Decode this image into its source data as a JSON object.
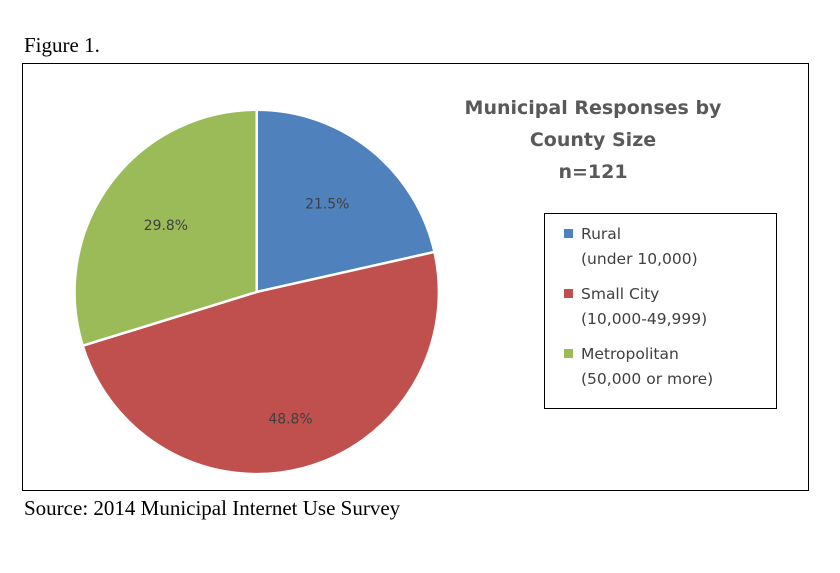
{
  "figure_label": "Figure 1.",
  "source_note": "Source: 2014 Municipal Internet Use Survey",
  "chart_data": {
    "type": "pie",
    "title": "Municipal Responses by County Size",
    "title_lines": [
      "Municipal Responses by",
      "County Size",
      "n=121"
    ],
    "subtitle": "n=121",
    "categories": [
      "Rural",
      "Small City",
      "Metropolitan"
    ],
    "category_details": [
      "(under 10,000)",
      "(10,000-49,999)",
      "(50,000 or more)"
    ],
    "values": [
      21.5,
      48.8,
      29.8
    ],
    "data_labels": [
      "21.5%",
      "48.8%",
      "29.8%"
    ],
    "colors": [
      "#4f81bd",
      "#c0504d",
      "#9bbb59"
    ],
    "legend_position": "right",
    "start_angle": "12 o'clock, clockwise"
  }
}
